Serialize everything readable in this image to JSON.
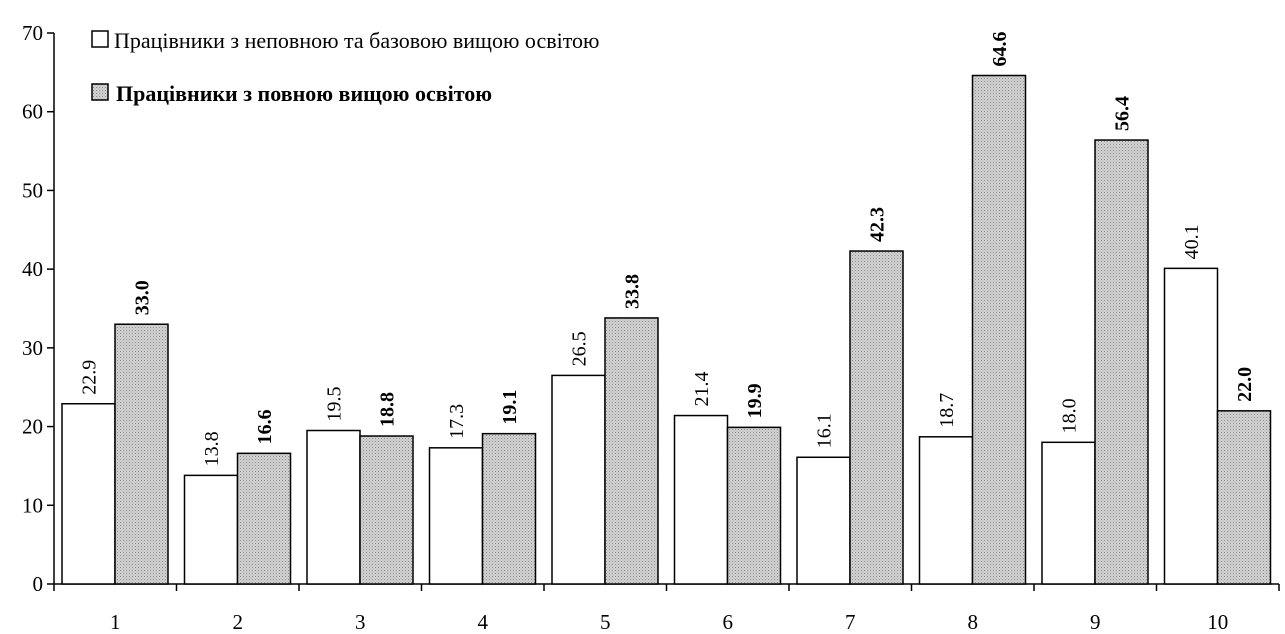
{
  "chart_data": {
    "type": "bar",
    "categories": [
      "1",
      "2",
      "3",
      "4",
      "5",
      "6",
      "7",
      "8",
      "9",
      "10"
    ],
    "series": [
      {
        "name": "Працівники з неповною та базовою вищою освітою",
        "values": [
          22.9,
          13.8,
          19.5,
          17.3,
          26.5,
          21.4,
          16.1,
          18.7,
          18.0,
          40.1
        ],
        "labels": [
          "22.9",
          "13.8",
          "19.5",
          "17.3",
          "26.5",
          "21.4",
          "16.1",
          "18.7",
          "18.0",
          "40.1"
        ],
        "fill": "#ffffff"
      },
      {
        "name": "Працівники з повною вищою освітою",
        "values": [
          33.0,
          16.6,
          18.8,
          19.1,
          33.8,
          19.9,
          42.3,
          64.6,
          56.4,
          22.0
        ],
        "labels": [
          "33.0",
          "16.6",
          "18.8",
          "19.1",
          "33.8",
          "19.9",
          "42.3",
          "64.6",
          "56.4",
          "22.0"
        ],
        "fill": "#c8c8c8"
      }
    ],
    "yticks": [
      "0",
      "10",
      "20",
      "30",
      "40",
      "50",
      "60",
      "70"
    ],
    "ylim": [
      0,
      70
    ],
    "grid": false,
    "legend_position": "top-left"
  }
}
